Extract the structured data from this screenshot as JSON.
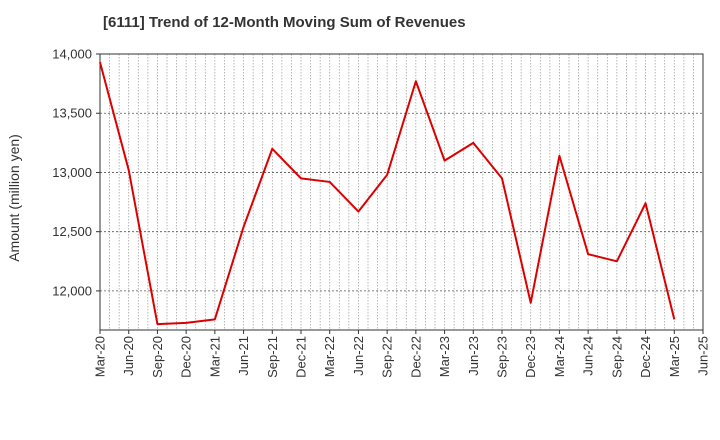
{
  "chart_data": {
    "type": "line",
    "title": "[6111]  Trend of 12-Month Moving Sum of Revenues",
    "xlabel": "",
    "ylabel": "Amount (million yen)",
    "ylim": [
      11670,
      14000
    ],
    "yticks": [
      12000,
      12500,
      13000,
      13500,
      14000
    ],
    "ytick_labels": [
      "12,000",
      "12,500",
      "13,000",
      "13,500",
      "14,000"
    ],
    "x_tick_labels": [
      "Mar-20",
      "Jun-20",
      "Sep-20",
      "Dec-20",
      "Mar-21",
      "Jun-21",
      "Sep-21",
      "Dec-21",
      "Mar-22",
      "Jun-22",
      "Sep-22",
      "Dec-22",
      "Mar-23",
      "Jun-23",
      "Sep-23",
      "Dec-23",
      "Mar-24",
      "Jun-24",
      "Sep-24",
      "Dec-24",
      "Mar-25",
      "Jun-25"
    ],
    "grid": true,
    "line_color": "#dd0000",
    "series": [
      {
        "values": [
          13930,
          13020,
          11720,
          11730,
          11760,
          12540,
          13200,
          12950,
          12920,
          12670,
          12980,
          13770,
          13100,
          13250,
          12950,
          11900,
          13140,
          12310,
          12250,
          12740,
          11760
        ]
      }
    ]
  }
}
